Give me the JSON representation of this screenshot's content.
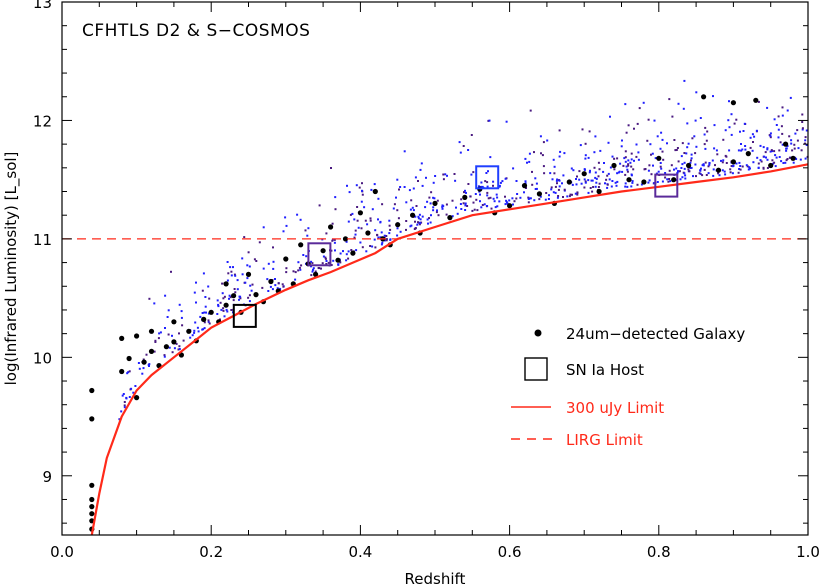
{
  "chart_data": {
    "type": "scatter",
    "title": "CFHTLS D2 & S−COSMOS",
    "xlabel": "Redshift",
    "ylabel": "log(Infrared Luminosity) [L_sol]",
    "xlim": [
      0.0,
      1.0
    ],
    "ylim": [
      8.5,
      13.0
    ],
    "xticks": [
      "0.0",
      "0.2",
      "0.4",
      "0.6",
      "0.8",
      "1.0"
    ],
    "yticks": [
      "9",
      "10",
      "11",
      "12",
      "13"
    ],
    "colors": {
      "galaxy": "#000000",
      "field_blue": "#1f1fff",
      "field_purple": "#4a1a80",
      "limit": "#ff2a1a",
      "host_black": "#000000",
      "host_purple": "#5a2a9a",
      "host_blue": "#1f3fff"
    },
    "limit_curve": {
      "name": "300 uJy Limit",
      "x": [
        0.04,
        0.05,
        0.06,
        0.08,
        0.1,
        0.12,
        0.15,
        0.18,
        0.2,
        0.23,
        0.26,
        0.3,
        0.33,
        0.36,
        0.39,
        0.42,
        0.45,
        0.5,
        0.55,
        0.6,
        0.65,
        0.7,
        0.75,
        0.8,
        0.85,
        0.9,
        0.95,
        1.0
      ],
      "y": [
        8.5,
        8.85,
        9.15,
        9.5,
        9.72,
        9.85,
        10.0,
        10.15,
        10.25,
        10.35,
        10.45,
        10.57,
        10.65,
        10.72,
        10.8,
        10.88,
        11.0,
        11.1,
        11.2,
        11.25,
        11.3,
        11.35,
        11.4,
        11.44,
        11.48,
        11.52,
        11.57,
        11.63
      ]
    },
    "lirg_limit": {
      "name": "LIRG Limit",
      "y": 11.0
    },
    "sn_hosts": [
      {
        "x": 0.245,
        "y": 10.35,
        "color": "host_black"
      },
      {
        "x": 0.345,
        "y": 10.87,
        "color": "host_purple"
      },
      {
        "x": 0.57,
        "y": 11.52,
        "color": "host_blue"
      },
      {
        "x": 0.81,
        "y": 11.45,
        "color": "host_purple"
      }
    ],
    "galaxies": [
      [
        0.04,
        8.55
      ],
      [
        0.04,
        8.62
      ],
      [
        0.04,
        8.68
      ],
      [
        0.04,
        8.74
      ],
      [
        0.04,
        8.8
      ],
      [
        0.04,
        8.92
      ],
      [
        0.04,
        9.48
      ],
      [
        0.04,
        9.72
      ],
      [
        0.08,
        9.88
      ],
      [
        0.08,
        10.16
      ],
      [
        0.09,
        9.99
      ],
      [
        0.1,
        10.18
      ],
      [
        0.1,
        9.66
      ],
      [
        0.11,
        9.96
      ],
      [
        0.12,
        10.05
      ],
      [
        0.12,
        10.22
      ],
      [
        0.13,
        9.93
      ],
      [
        0.14,
        10.09
      ],
      [
        0.15,
        10.3
      ],
      [
        0.15,
        10.13
      ],
      [
        0.16,
        10.02
      ],
      [
        0.17,
        10.22
      ],
      [
        0.18,
        10.14
      ],
      [
        0.19,
        10.32
      ],
      [
        0.2,
        10.38
      ],
      [
        0.21,
        10.3
      ],
      [
        0.22,
        10.44
      ],
      [
        0.22,
        10.62
      ],
      [
        0.23,
        10.52
      ],
      [
        0.24,
        10.38
      ],
      [
        0.25,
        10.7
      ],
      [
        0.26,
        10.53
      ],
      [
        0.27,
        10.47
      ],
      [
        0.28,
        10.64
      ],
      [
        0.29,
        10.56
      ],
      [
        0.3,
        10.83
      ],
      [
        0.31,
        10.62
      ],
      [
        0.32,
        10.95
      ],
      [
        0.33,
        10.79
      ],
      [
        0.34,
        10.7
      ],
      [
        0.35,
        10.9
      ],
      [
        0.36,
        11.1
      ],
      [
        0.37,
        10.82
      ],
      [
        0.38,
        11.0
      ],
      [
        0.39,
        10.88
      ],
      [
        0.4,
        11.22
      ],
      [
        0.41,
        11.05
      ],
      [
        0.42,
        11.4
      ],
      [
        0.43,
        11.0
      ],
      [
        0.44,
        10.95
      ],
      [
        0.45,
        11.12
      ],
      [
        0.47,
        11.2
      ],
      [
        0.48,
        11.05
      ],
      [
        0.5,
        11.3
      ],
      [
        0.52,
        11.18
      ],
      [
        0.54,
        11.35
      ],
      [
        0.56,
        11.42
      ],
      [
        0.58,
        11.22
      ],
      [
        0.6,
        11.28
      ],
      [
        0.62,
        11.45
      ],
      [
        0.64,
        11.38
      ],
      [
        0.66,
        11.3
      ],
      [
        0.68,
        11.48
      ],
      [
        0.7,
        11.55
      ],
      [
        0.72,
        11.4
      ],
      [
        0.74,
        11.62
      ],
      [
        0.76,
        11.5
      ],
      [
        0.78,
        11.48
      ],
      [
        0.8,
        11.68
      ],
      [
        0.82,
        11.5
      ],
      [
        0.84,
        11.62
      ],
      [
        0.86,
        12.2
      ],
      [
        0.88,
        11.58
      ],
      [
        0.9,
        11.65
      ],
      [
        0.9,
        12.15
      ],
      [
        0.92,
        11.72
      ],
      [
        0.93,
        12.17
      ],
      [
        0.95,
        11.62
      ],
      [
        0.97,
        11.8
      ],
      [
        0.98,
        11.68
      ]
    ],
    "legend": [
      {
        "label": "24um−detected Galaxy",
        "marker": "dot",
        "color": "#000000"
      },
      {
        "label": "SN Ia Host",
        "marker": "square",
        "color": "#000000"
      },
      {
        "label": "300 uJy Limit",
        "marker": "solid",
        "color": "#ff2a1a"
      },
      {
        "label": "LIRG Limit",
        "marker": "dashed",
        "color": "#ff2a1a"
      }
    ]
  }
}
